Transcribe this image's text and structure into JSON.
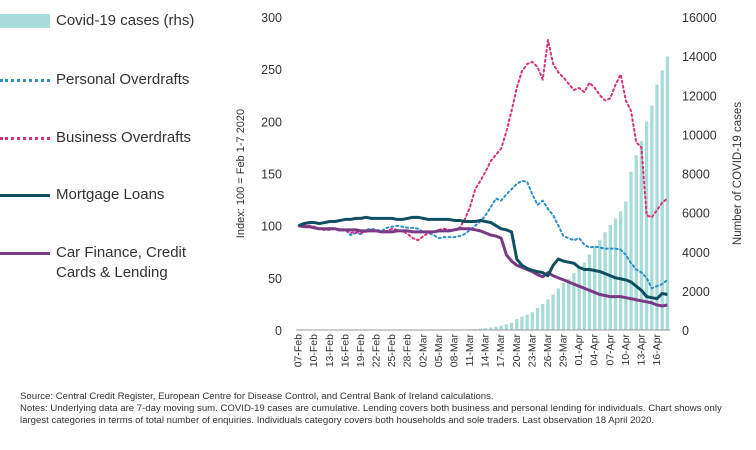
{
  "legend": [
    {
      "label": "Covid-19 cases (rhs)",
      "color": "#a8dcd9",
      "kind": "bar"
    },
    {
      "label": "Personal Overdrafts",
      "color": "#2f8fc7",
      "kind": "dotted"
    },
    {
      "label": "Business Overdrafts",
      "color": "#d6337e",
      "kind": "dotted"
    },
    {
      "label": "Mortgage Loans",
      "color": "#0f4f5f",
      "kind": "solid"
    },
    {
      "label": " Car Finance, Credit\nCards & Lending",
      "color": "#7a3a85",
      "kind": "solid"
    }
  ],
  "chart_data": {
    "type": "line",
    "title": "",
    "x": [
      "07-Feb",
      "08-Feb",
      "09-Feb",
      "10-Feb",
      "11-Feb",
      "12-Feb",
      "13-Feb",
      "14-Feb",
      "15-Feb",
      "16-Feb",
      "17-Feb",
      "18-Feb",
      "19-Feb",
      "20-Feb",
      "21-Feb",
      "22-Feb",
      "23-Feb",
      "24-Feb",
      "25-Feb",
      "26-Feb",
      "27-Feb",
      "28-Feb",
      "29-Feb",
      "01-Mar",
      "02-Mar",
      "03-Mar",
      "04-Mar",
      "05-Mar",
      "06-Mar",
      "07-Mar",
      "08-Mar",
      "09-Mar",
      "10-Mar",
      "11-Mar",
      "12-Mar",
      "13-Mar",
      "14-Mar",
      "15-Mar",
      "16-Mar",
      "17-Mar",
      "18-Mar",
      "19-Mar",
      "20-Mar",
      "21-Mar",
      "22-Mar",
      "23-Mar",
      "24-Mar",
      "25-Mar",
      "26-Mar",
      "27-Mar",
      "28-Mar",
      "29-Mar",
      "30-Mar",
      "31-Mar",
      "01-Apr",
      "02-Apr",
      "03-Apr",
      "04-Apr",
      "05-Apr",
      "06-Apr",
      "07-Apr",
      "08-Apr",
      "09-Apr",
      "10-Apr",
      "11-Apr",
      "12-Apr",
      "13-Apr",
      "14-Apr",
      "15-Apr",
      "16-Apr",
      "17-Apr",
      "18-Apr"
    ],
    "xtick_labels": [
      "07-Feb",
      "10-Feb",
      "13-Feb",
      "16-Feb",
      "19-Feb",
      "22-Feb",
      "25-Feb",
      "28-Feb",
      "02-Mar",
      "05-Mar",
      "08-Mar",
      "11-Mar",
      "14-Mar",
      "17-Mar",
      "20-Mar",
      "23-Mar",
      "26-Mar",
      "29-Mar",
      "01-Apr",
      "04-Apr",
      "07-Apr",
      "10-Apr",
      "13-Apr",
      "16-Apr"
    ],
    "ylabel": "Index: 100 = Feb 1-7 2020",
    "ylabel_right": "Number of COVID-19 cases",
    "ylim": [
      0,
      300
    ],
    "yticks": [
      0,
      50,
      100,
      150,
      200,
      250,
      300
    ],
    "ylim_right": [
      0,
      16000
    ],
    "yticks_right": [
      0,
      2000,
      4000,
      6000,
      8000,
      10000,
      12000,
      14000,
      16000
    ],
    "series": [
      {
        "name": "Covid-19 cases (rhs)",
        "type": "bar",
        "axis": "right",
        "values": [
          0,
          0,
          0,
          0,
          0,
          0,
          0,
          0,
          0,
          0,
          0,
          0,
          0,
          0,
          0,
          0,
          0,
          0,
          0,
          0,
          0,
          0,
          0,
          1,
          1,
          2,
          6,
          13,
          18,
          19,
          21,
          21,
          24,
          34,
          43,
          70,
          90,
          129,
          169,
          223,
          292,
          366,
          557,
          683,
          785,
          906,
          1125,
          1329,
          1564,
          1819,
          2121,
          2415,
          2615,
          2910,
          3235,
          3447,
          3849,
          4273,
          4604,
          4994,
          5364,
          5709,
          6074,
          6574,
          8089,
          8928,
          9655,
          10647,
          11479,
          12547,
          13271,
          13980
        ]
      },
      {
        "name": "Personal Overdrafts",
        "type": "line",
        "style": "dotted",
        "axis": "left",
        "values": [
          100,
          101,
          100,
          99,
          97,
          96,
          98,
          97,
          95,
          96,
          91,
          93,
          92,
          96,
          97,
          96,
          95,
          98,
          99,
          100,
          99,
          98,
          98,
          97,
          94,
          93,
          91,
          88,
          89,
          89,
          89,
          90,
          92,
          96,
          100,
          104,
          110,
          118,
          126,
          124,
          130,
          135,
          140,
          143,
          142,
          130,
          120,
          124,
          116,
          110,
          100,
          90,
          88,
          86,
          88,
          82,
          79,
          80,
          79,
          78,
          78,
          78,
          77,
          72,
          64,
          58,
          55,
          50,
          40,
          42,
          44,
          48
        ]
      },
      {
        "name": "Business Overdrafts",
        "type": "line",
        "style": "dotted",
        "axis": "left",
        "values": [
          100,
          101,
          100,
          99,
          97,
          96,
          96,
          97,
          95,
          96,
          93,
          94,
          93,
          94,
          96,
          95,
          94,
          95,
          97,
          96,
          95,
          92,
          88,
          86,
          90,
          93,
          94,
          96,
          97,
          96,
          96,
          98,
          106,
          118,
          135,
          143,
          152,
          162,
          168,
          174,
          190,
          210,
          232,
          248,
          255,
          257,
          252,
          240,
          278,
          255,
          247,
          242,
          236,
          230,
          232,
          228,
          237,
          232,
          225,
          220,
          222,
          235,
          245,
          220,
          210,
          180,
          175,
          110,
          108,
          115,
          122,
          126
        ]
      },
      {
        "name": "Mortgage Loans",
        "type": "line",
        "style": "solid",
        "axis": "left",
        "values": [
          100,
          102,
          103,
          103,
          102,
          103,
          104,
          104,
          105,
          106,
          106,
          107,
          107,
          108,
          107,
          107,
          107,
          107,
          107,
          106,
          106,
          107,
          108,
          108,
          107,
          106,
          106,
          106,
          106,
          106,
          105,
          105,
          104,
          104,
          104,
          105,
          104,
          103,
          100,
          97,
          96,
          94,
          68,
          62,
          59,
          57,
          56,
          55,
          52,
          62,
          68,
          66,
          65,
          64,
          60,
          58,
          58,
          57,
          56,
          54,
          52,
          50,
          49,
          48,
          46,
          42,
          38,
          32,
          31,
          30,
          35,
          34
        ]
      },
      {
        "name": "Car Finance, Credit Cards & Lending",
        "type": "line",
        "style": "solid",
        "axis": "left",
        "values": [
          100,
          99,
          99,
          98,
          97,
          97,
          97,
          97,
          96,
          96,
          96,
          96,
          95,
          95,
          95,
          95,
          94,
          94,
          94,
          95,
          95,
          95,
          94,
          94,
          94,
          94,
          94,
          95,
          95,
          95,
          96,
          97,
          97,
          97,
          96,
          95,
          93,
          91,
          90,
          88,
          72,
          66,
          62,
          60,
          58,
          56,
          53,
          51,
          55,
          52,
          50,
          48,
          46,
          44,
          42,
          40,
          38,
          36,
          34,
          33,
          32,
          32,
          32,
          31,
          30,
          29,
          28,
          27,
          26,
          24,
          23,
          24
        ]
      }
    ]
  },
  "notes": {
    "source": "Source:  Central Credit Register, European Centre for Disease Control, and Central Bank of Ireland calculations.",
    "notes_text": "Notes: Underlying data are 7-day moving sum. COVID-19 cases are cumulative. Lending covers both business and personal lending for individuals.  Chart shows only largest categories in terms of total number of enquiries.  Individuals category covers both households and sole traders. Last observation 18 April 2020."
  }
}
